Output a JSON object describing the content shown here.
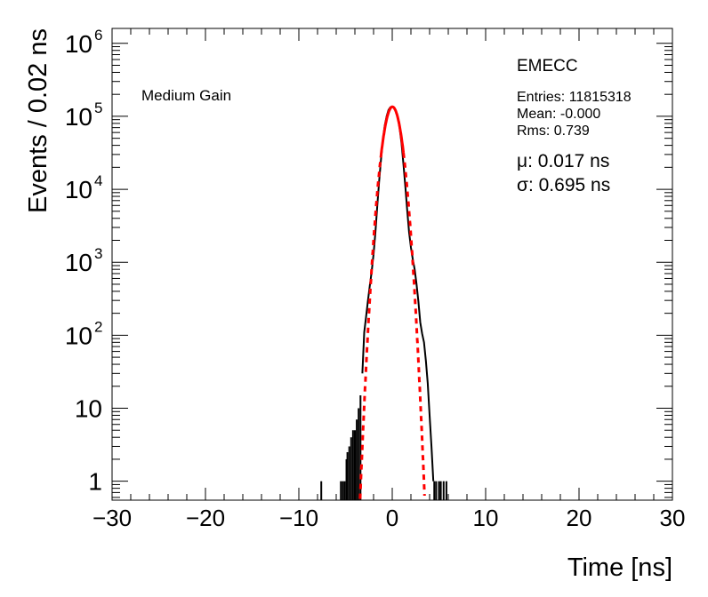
{
  "chart_data": {
    "type": "histogram",
    "title": "EMECC",
    "xlabel": "Time [ns]",
    "ylabel": "Events / 0.02 ns",
    "xlim": [
      -30,
      30
    ],
    "ylim": [
      0.55,
      1600000
    ],
    "yscale": "log",
    "xticks": [
      -30,
      -20,
      -10,
      0,
      10,
      20,
      30
    ],
    "xtick_labels": [
      "−30",
      "−20",
      "−10",
      "0",
      "10",
      "20",
      "30"
    ],
    "yticks": [
      1,
      10,
      100,
      1000,
      10000,
      100000,
      1000000
    ],
    "ytick_labels": [
      {
        "base": "1",
        "exp": ""
      },
      {
        "base": "10",
        "exp": ""
      },
      {
        "base": "10",
        "exp": "2"
      },
      {
        "base": "10",
        "exp": "3"
      },
      {
        "base": "10",
        "exp": "4"
      },
      {
        "base": "10",
        "exp": "5"
      },
      {
        "base": "10",
        "exp": "6"
      }
    ],
    "label": "Medium Gain",
    "stats": {
      "entries": "Entries: 11815318",
      "mean": "Mean: -0.000",
      "rms": "Rms: 0.739"
    },
    "fit": {
      "mu_text": "μ: 0.017 ns",
      "sigma_text": "σ: 0.695 ns",
      "mu": 0.017,
      "sigma": 0.695,
      "amplitude": 135000,
      "fit_range": [
        -1.2,
        1.2
      ],
      "color": "#ff0000"
    },
    "series": [
      {
        "name": "data",
        "color": "#000000",
        "x": [
          -3.2,
          -3.0,
          -2.8,
          -2.6,
          -2.4,
          -2.2,
          -2.0,
          -1.8,
          -1.6,
          -1.4,
          -1.2,
          -1.0,
          -0.8,
          -0.6,
          -0.4,
          -0.2,
          0.0,
          0.2,
          0.4,
          0.6,
          0.8,
          1.0,
          1.2,
          1.4,
          1.6,
          1.8,
          2.0,
          2.2,
          2.4,
          2.6,
          2.8,
          3.0,
          3.2,
          3.4,
          3.6,
          3.8,
          4.0,
          4.2,
          4.4
        ],
        "y": [
          30,
          110,
          180,
          300,
          480,
          750,
          1300,
          2600,
          6000,
          13000,
          26000,
          48000,
          75000,
          100000,
          122000,
          133000,
          135000,
          131000,
          118000,
          95000,
          68000,
          42000,
          22000,
          11000,
          5200,
          2600,
          1600,
          1100,
          800,
          500,
          290,
          150,
          105,
          80,
          45,
          22,
          8,
          3,
          1
        ]
      }
    ],
    "tails": {
      "left_x": [
        -5.5,
        -5.3,
        -5.1,
        -4.9,
        -4.8,
        -4.6,
        -4.4,
        -4.2,
        -4.0,
        -3.8,
        -3.6,
        -3.4
      ],
      "left_y": [
        1,
        1,
        1,
        2,
        2.5,
        3,
        4,
        5,
        5,
        7,
        10,
        15
      ],
      "right_x": [
        4.5,
        4.7,
        5.0,
        5.2,
        5.5,
        5.8
      ],
      "right_y": [
        1,
        1,
        1,
        1,
        1,
        1
      ],
      "isolated_x": [
        -7.6
      ],
      "isolated_y": [
        1
      ]
    }
  }
}
